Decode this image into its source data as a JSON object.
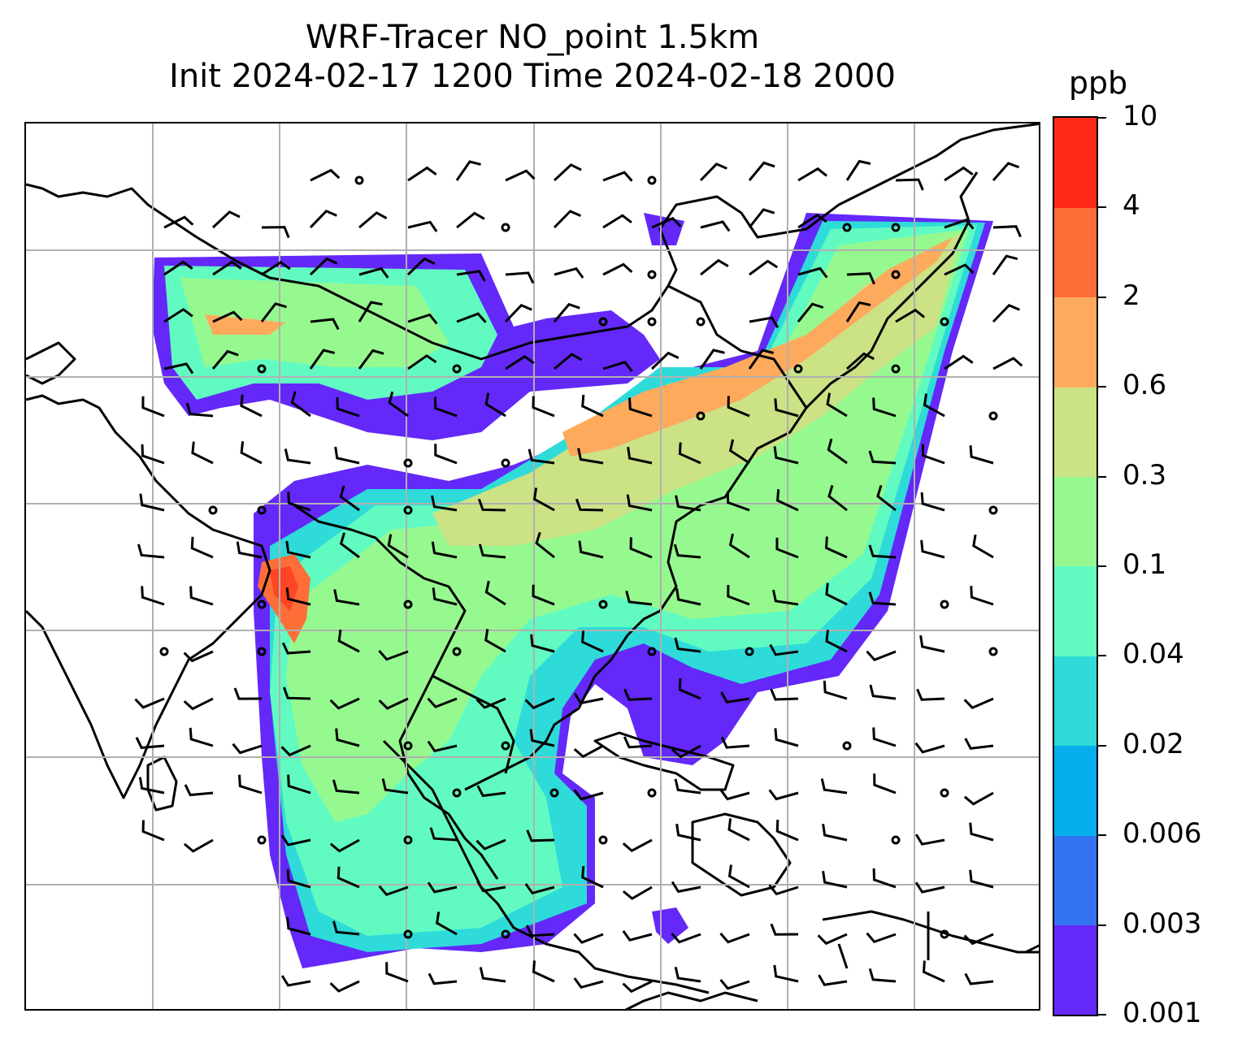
{
  "title": {
    "line1": "WRF-Tracer NO_point 1.5km",
    "line2": "Init 2024-02-17 1200 Time 2024-02-18 2000"
  },
  "colorbar": {
    "unit": "ppb",
    "levels": [
      "0.001",
      "0.003",
      "0.006",
      "0.02",
      "0.04",
      "0.1",
      "0.3",
      "0.6",
      "2",
      "4",
      "10"
    ],
    "colors": [
      "#6428f9",
      "#3373f2",
      "#06aeed",
      "#2edbd9",
      "#61fbc1",
      "#96f98f",
      "#cbe285",
      "#fdaa5d",
      "#ff6e38",
      "#ff2a17"
    ]
  },
  "map": {
    "gridlines": "on",
    "overlays": [
      "coastlines",
      "country borders",
      "wind barbs",
      "tracer concentration shading"
    ]
  }
}
